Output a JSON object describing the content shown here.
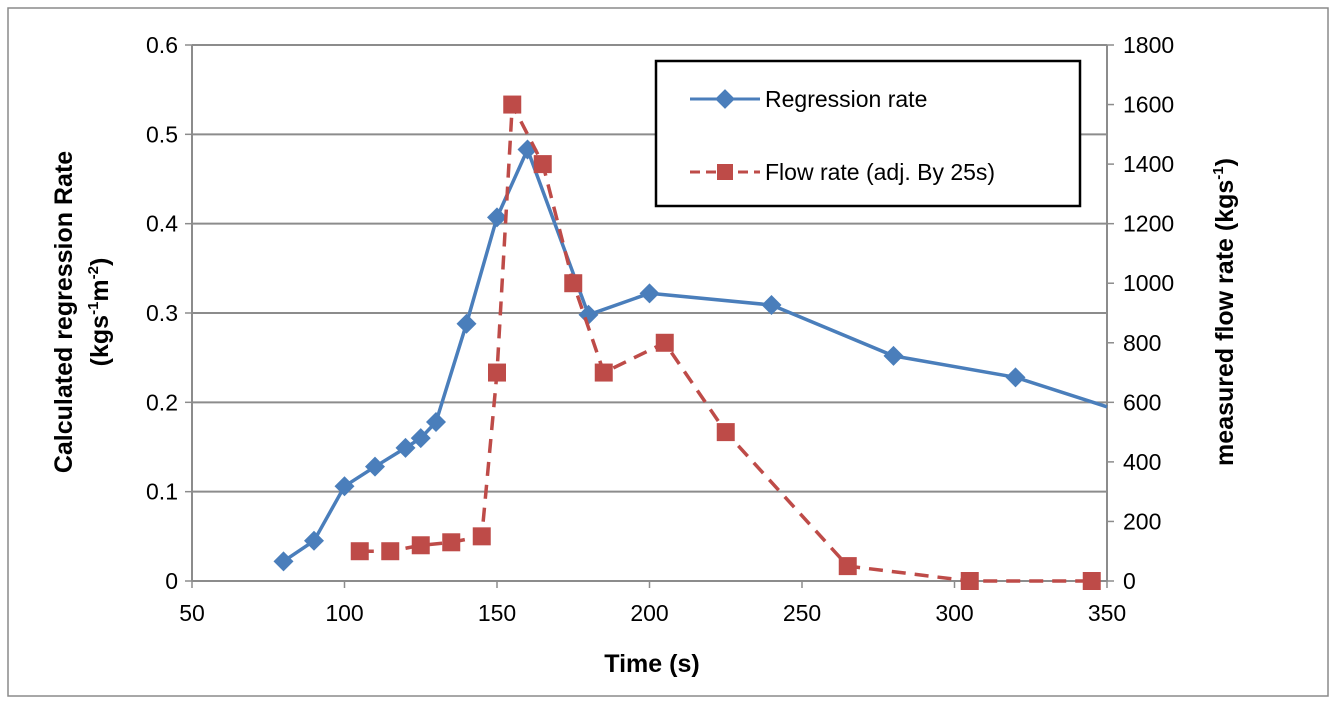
{
  "chart_data": {
    "type": "line",
    "title": "",
    "xlabel": "Time (s)",
    "ylabel_left_line1": "Calculated regression Rate",
    "ylabel_left_line2_prefix": "(kgs",
    "ylabel_left_sup1": "-1",
    "ylabel_left_mid": "m",
    "ylabel_left_sup2": "-2",
    "ylabel_left_suffix": ")",
    "ylabel_right_prefix": "measured flow rate (kgs",
    "ylabel_right_sup": "-1",
    "xlim": [
      50,
      350
    ],
    "ylim_left": [
      0,
      0.6
    ],
    "ylim_right": [
      0,
      1800
    ],
    "x_ticks": [
      "50",
      "100",
      "150",
      "200",
      "250",
      "300",
      "350"
    ],
    "y_left_ticks": [
      "0",
      "0.1",
      "0.2",
      "0.3",
      "0.4",
      "0.5",
      "0.6"
    ],
    "y_right_ticks": [
      "0",
      "200",
      "400",
      "600",
      "800",
      "1000",
      "1200",
      "1400",
      "1600",
      "1800"
    ],
    "grid": "horizontal",
    "legend_position": "top-right",
    "series": [
      {
        "name": "Regression rate",
        "axis": "left",
        "color": "#4a7ebb",
        "line_style": "solid",
        "marker": "diamond",
        "x": [
          80,
          90,
          100,
          110,
          120,
          125,
          130,
          140,
          150,
          160,
          180,
          200,
          240,
          280,
          320,
          350
        ],
        "y": [
          0.022,
          0.045,
          0.106,
          0.128,
          0.149,
          0.16,
          0.178,
          0.288,
          0.407,
          0.483,
          0.298,
          0.322,
          0.309,
          0.252,
          0.228,
          0.195
        ],
        "marker_count": 15
      },
      {
        "name": "Flow rate (adj. By 25s)",
        "axis": "right",
        "color": "#be4b48",
        "line_style": "dashed",
        "marker": "square",
        "x": [
          105,
          115,
          125,
          135,
          145,
          150,
          155,
          165,
          175,
          185,
          205,
          225,
          265,
          305,
          345
        ],
        "y": [
          100,
          100,
          120,
          130,
          150,
          700,
          1600,
          1400,
          1000,
          700,
          800,
          500,
          50,
          0,
          0
        ]
      }
    ]
  }
}
